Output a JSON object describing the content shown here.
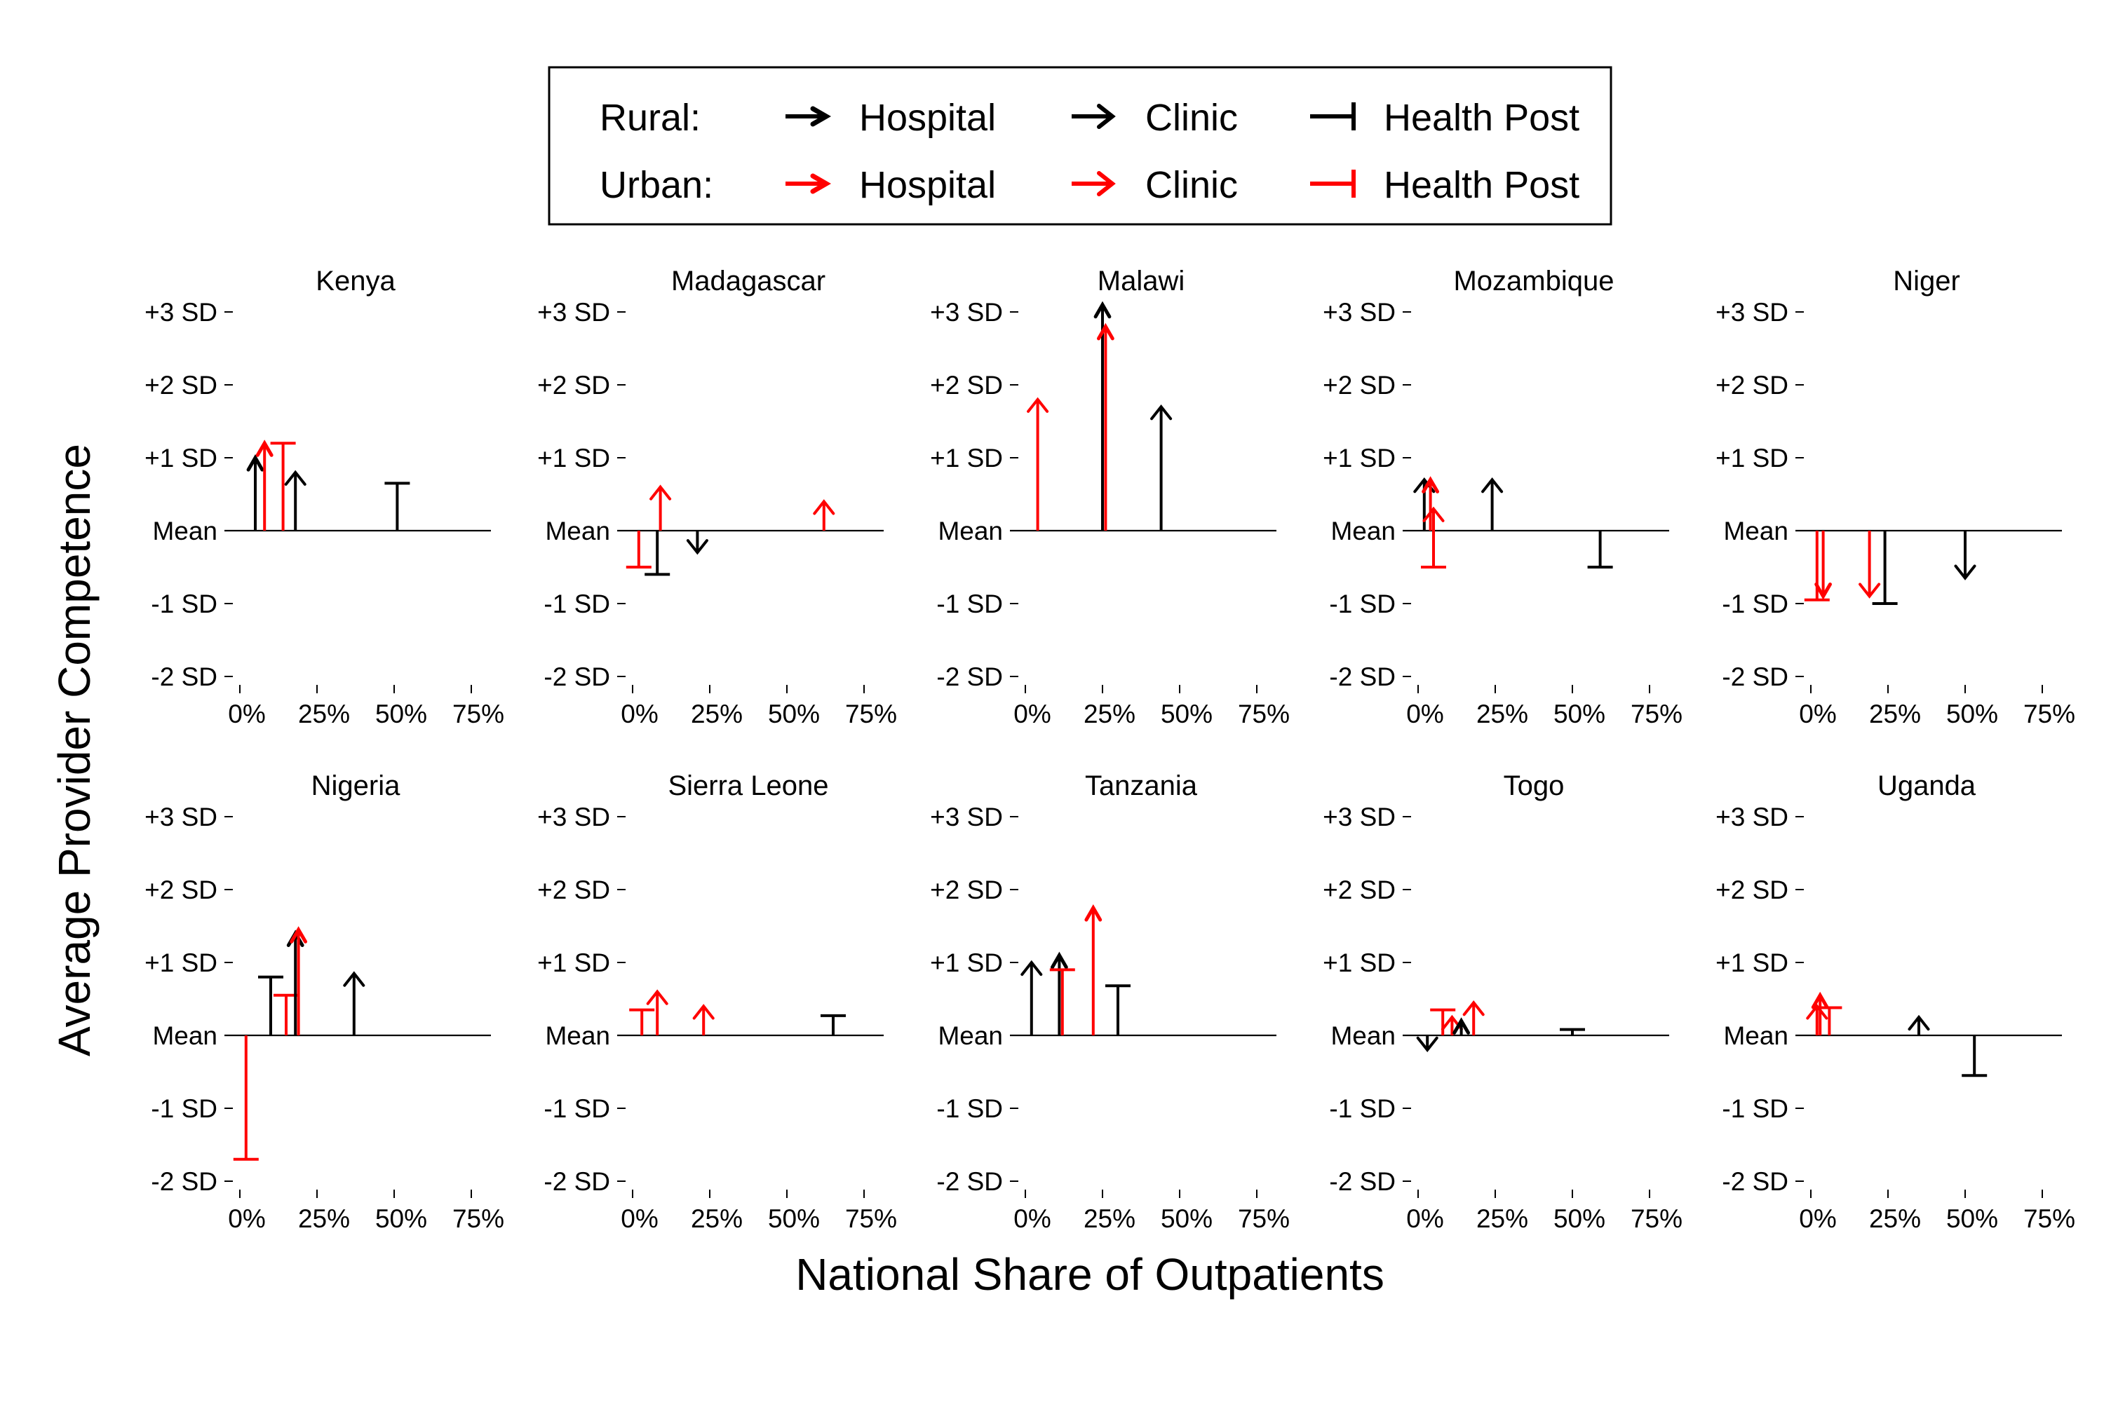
{
  "figure": {
    "ylabel": "Average Provider Competence",
    "xlabel": "National Share of Outpatients",
    "y_ticks": [
      {
        "value": 3,
        "label": "+3 SD"
      },
      {
        "value": 2,
        "label": "+2 SD"
      },
      {
        "value": 1,
        "label": "+1 SD"
      },
      {
        "value": 0,
        "label": "Mean"
      },
      {
        "value": -1,
        "label": "-1 SD"
      },
      {
        "value": -2,
        "label": "-2 SD"
      }
    ],
    "x_ticks": [
      {
        "value": 0,
        "label": "0%"
      },
      {
        "value": 25,
        "label": "25%"
      },
      {
        "value": 50,
        "label": "50%"
      },
      {
        "value": 75,
        "label": "75%"
      }
    ]
  },
  "legend": {
    "rows": [
      {
        "label": "Rural:",
        "color": "#000000",
        "items": [
          {
            "marker": "hospital",
            "label": "Hospital"
          },
          {
            "marker": "clinic",
            "label": "Clinic"
          },
          {
            "marker": "healthpost",
            "label": "Health Post"
          }
        ]
      },
      {
        "label": "Urban:",
        "color": "#ff0000",
        "items": [
          {
            "marker": "hospital",
            "label": "Hospital"
          },
          {
            "marker": "clinic",
            "label": "Clinic"
          },
          {
            "marker": "healthpost",
            "label": "Health Post"
          }
        ]
      }
    ]
  },
  "colors": {
    "rural": "#000000",
    "urban": "#ff0000"
  },
  "chart_data": {
    "type": "scatter",
    "encoding": "Each facility group is a vertical segment from the mean line (0 SD) to its average competence (SD units), drawn at its share of national outpatients (%). Marker: hospital = filled arrowhead, clinic = open arrowhead, health post = horizontal cap.",
    "xlim": [
      0,
      75
    ],
    "ylim": [
      -2,
      3
    ],
    "panels": [
      {
        "country": "Kenya",
        "points": [
          {
            "setting": "rural",
            "type": "hospital",
            "x": 5,
            "y": 1.0
          },
          {
            "setting": "urban",
            "type": "hospital",
            "x": 8,
            "y": 1.2
          },
          {
            "setting": "urban",
            "type": "healthpost",
            "x": 14,
            "y": 1.2
          },
          {
            "setting": "rural",
            "type": "clinic",
            "x": 18,
            "y": 0.8
          },
          {
            "setting": "rural",
            "type": "healthpost",
            "x": 51,
            "y": 0.65
          }
        ]
      },
      {
        "country": "Madagascar",
        "points": [
          {
            "setting": "urban",
            "type": "healthpost",
            "x": 2,
            "y": -0.5
          },
          {
            "setting": "rural",
            "type": "healthpost",
            "x": 8,
            "y": -0.6
          },
          {
            "setting": "urban",
            "type": "clinic",
            "x": 9,
            "y": 0.6
          },
          {
            "setting": "rural",
            "type": "clinic",
            "x": 21,
            "y": -0.3
          },
          {
            "setting": "urban",
            "type": "clinic",
            "x": 62,
            "y": 0.4
          }
        ]
      },
      {
        "country": "Malawi",
        "points": [
          {
            "setting": "urban",
            "type": "clinic",
            "x": 4,
            "y": 1.8
          },
          {
            "setting": "rural",
            "type": "hospital",
            "x": 25,
            "y": 3.1
          },
          {
            "setting": "urban",
            "type": "hospital",
            "x": 26,
            "y": 2.8
          },
          {
            "setting": "rural",
            "type": "clinic",
            "x": 44,
            "y": 1.7
          }
        ]
      },
      {
        "country": "Mozambique",
        "points": [
          {
            "setting": "rural",
            "type": "clinic",
            "x": 2,
            "y": 0.7
          },
          {
            "setting": "urban",
            "type": "hospital",
            "x": 4,
            "y": 0.7
          },
          {
            "setting": "urban",
            "type": "clinic",
            "x": 5,
            "y": 0.3
          },
          {
            "setting": "urban",
            "type": "healthpost",
            "x": 5,
            "y": -0.5
          },
          {
            "setting": "rural",
            "type": "clinic",
            "x": 24,
            "y": 0.7
          },
          {
            "setting": "rural",
            "type": "healthpost",
            "x": 59,
            "y": -0.5
          }
        ]
      },
      {
        "country": "Niger",
        "points": [
          {
            "setting": "urban",
            "type": "healthpost",
            "x": 2,
            "y": -0.95
          },
          {
            "setting": "urban",
            "type": "hospital",
            "x": 4,
            "y": -0.9
          },
          {
            "setting": "urban",
            "type": "clinic",
            "x": 19,
            "y": -0.9
          },
          {
            "setting": "rural",
            "type": "healthpost",
            "x": 24,
            "y": -1.0
          },
          {
            "setting": "rural",
            "type": "clinic",
            "x": 50,
            "y": -0.65
          }
        ]
      },
      {
        "country": "Nigeria",
        "points": [
          {
            "setting": "urban",
            "type": "healthpost",
            "x": 2,
            "y": -1.7
          },
          {
            "setting": "rural",
            "type": "healthpost",
            "x": 10,
            "y": 0.8
          },
          {
            "setting": "urban",
            "type": "healthpost",
            "x": 15,
            "y": 0.55
          },
          {
            "setting": "rural",
            "type": "hospital",
            "x": 18,
            "y": 1.4
          },
          {
            "setting": "urban",
            "type": "hospital",
            "x": 19,
            "y": 1.45
          },
          {
            "setting": "rural",
            "type": "clinic",
            "x": 37,
            "y": 0.85
          }
        ]
      },
      {
        "country": "Sierra Leone",
        "points": [
          {
            "setting": "urban",
            "type": "healthpost",
            "x": 3,
            "y": 0.35
          },
          {
            "setting": "urban",
            "type": "clinic",
            "x": 8,
            "y": 0.6
          },
          {
            "setting": "urban",
            "type": "clinic",
            "x": 23,
            "y": 0.4
          },
          {
            "setting": "rural",
            "type": "healthpost",
            "x": 65,
            "y": 0.27
          }
        ]
      },
      {
        "country": "Tanzania",
        "points": [
          {
            "setting": "rural",
            "type": "clinic",
            "x": 2,
            "y": 1.0
          },
          {
            "setting": "rural",
            "type": "hospital",
            "x": 11,
            "y": 1.1
          },
          {
            "setting": "urban",
            "type": "healthpost",
            "x": 12,
            "y": 0.9
          },
          {
            "setting": "urban",
            "type": "hospital",
            "x": 22,
            "y": 1.75
          },
          {
            "setting": "rural",
            "type": "healthpost",
            "x": 30,
            "y": 0.68
          }
        ]
      },
      {
        "country": "Togo",
        "points": [
          {
            "setting": "rural",
            "type": "clinic",
            "x": 3,
            "y": -0.2
          },
          {
            "setting": "urban",
            "type": "healthpost",
            "x": 8,
            "y": 0.35
          },
          {
            "setting": "urban",
            "type": "clinic",
            "x": 11,
            "y": 0.25
          },
          {
            "setting": "rural",
            "type": "hospital",
            "x": 14,
            "y": 0.2
          },
          {
            "setting": "urban",
            "type": "clinic",
            "x": 18,
            "y": 0.45
          },
          {
            "setting": "rural",
            "type": "healthpost",
            "x": 50,
            "y": 0.08
          }
        ]
      },
      {
        "country": "Uganda",
        "points": [
          {
            "setting": "urban",
            "type": "clinic",
            "x": 2,
            "y": 0.4
          },
          {
            "setting": "urban",
            "type": "hospital",
            "x": 3,
            "y": 0.55
          },
          {
            "setting": "urban",
            "type": "healthpost",
            "x": 6,
            "y": 0.38
          },
          {
            "setting": "rural",
            "type": "clinic",
            "x": 35,
            "y": 0.25
          },
          {
            "setting": "rural",
            "type": "healthpost",
            "x": 53,
            "y": -0.55
          }
        ]
      }
    ]
  }
}
